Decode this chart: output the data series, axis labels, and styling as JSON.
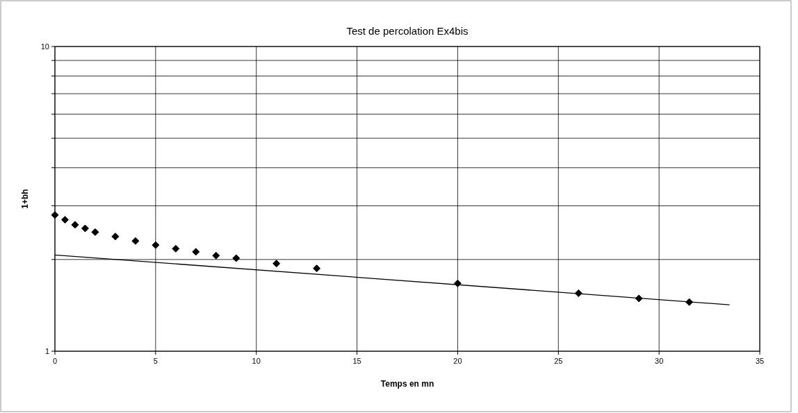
{
  "chart_data": {
    "type": "scatter",
    "title": "Test de percolation Ex4bis",
    "xlabel": "Temps en mn",
    "ylabel": "1+bh",
    "log": "y",
    "grid": true,
    "marker": "diamond",
    "xlim": [
      0,
      35
    ],
    "xticks": [
      0,
      5,
      10,
      15,
      20,
      25,
      30,
      35
    ],
    "ylim": [
      1,
      10
    ],
    "yticks": [
      1,
      {
        "value": 2,
        "label": null
      },
      {
        "value": 3,
        "label": null
      },
      {
        "value": 4,
        "label": null
      },
      {
        "value": 5,
        "label": null
      },
      {
        "value": 6,
        "label": null
      },
      {
        "value": 7,
        "label": null
      },
      {
        "value": 8,
        "label": null
      },
      {
        "value": 9,
        "label": null
      },
      10
    ],
    "series": [
      {
        "color": "#000000",
        "x": [
          0,
          0.5,
          1,
          1.5,
          2,
          3,
          4,
          5,
          6,
          7,
          8,
          9,
          11,
          13,
          20,
          26,
          29,
          31.5
        ],
        "values": [
          2.8,
          2.7,
          2.6,
          2.53,
          2.46,
          2.38,
          2.3,
          2.23,
          2.17,
          2.12,
          2.06,
          2.02,
          1.94,
          1.87,
          1.67,
          1.55,
          1.49,
          1.45
        ]
      },
      {
        "type": "line",
        "color": "#000000",
        "marker": "none",
        "line_style": "solid",
        "x": [
          0,
          33.5
        ],
        "values": [
          2.07,
          1.42
        ]
      }
    ]
  }
}
